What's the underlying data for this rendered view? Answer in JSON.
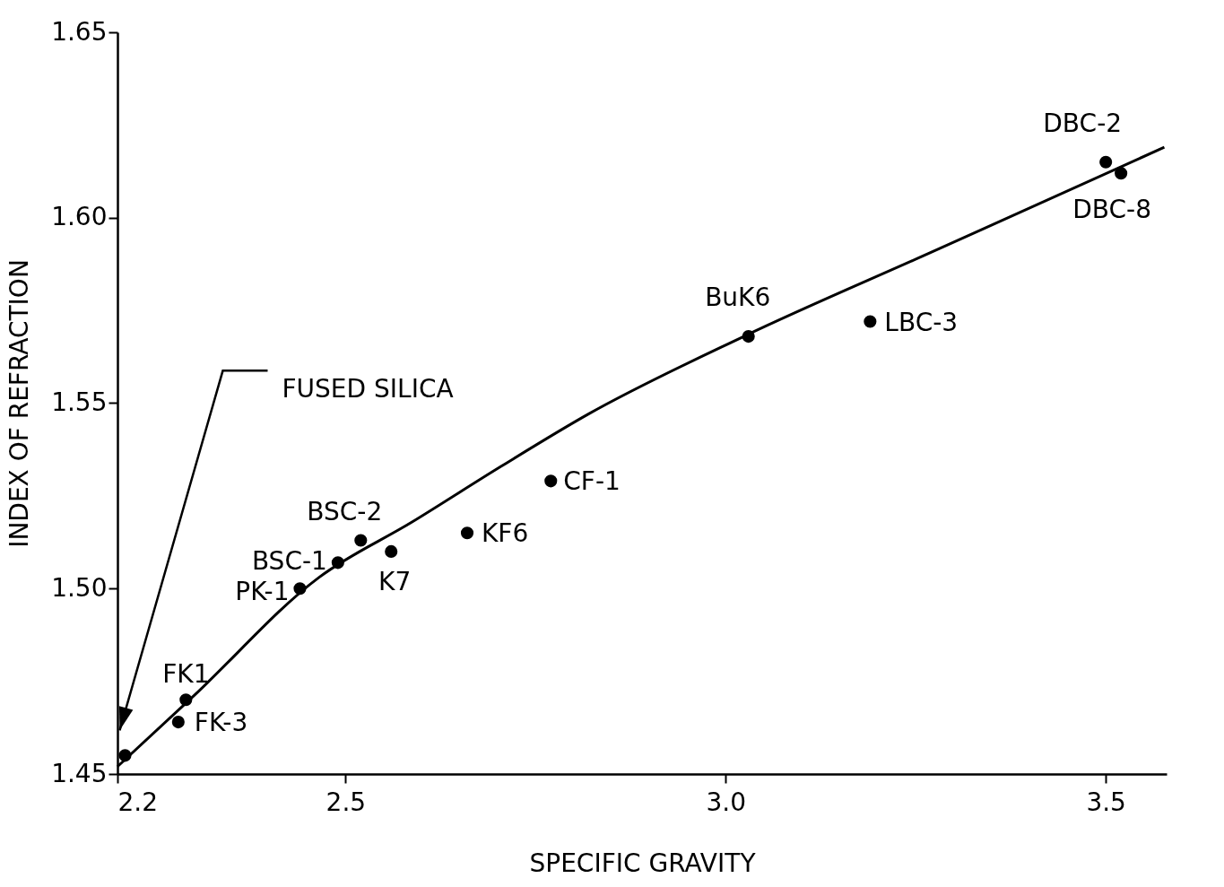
{
  "chart_data": {
    "type": "scatter",
    "xlabel": "SPECIFIC GRAVITY",
    "ylabel": "INDEX OF REFRACTION",
    "xlim": [
      2.2,
      3.58
    ],
    "xticks": [
      2.2,
      2.5,
      {
        "value": 3,
        "label": "3.0"
      },
      3.5
    ],
    "ylim": [
      1.45,
      1.65
    ],
    "yticks": [
      1.45,
      {
        "value": 1.5,
        "label": "1.50"
      },
      1.55,
      {
        "value": 1.6,
        "label": "1.60"
      },
      1.65
    ],
    "grid": false,
    "series": [
      {
        "marker": "circle",
        "color": "#000000",
        "x": [
          2.21,
          2.29,
          2.28,
          2.44,
          2.49,
          2.52,
          2.56,
          2.66,
          2.77,
          3.03,
          3.19,
          3.5,
          3.52
        ],
        "values": [
          1.455,
          1.47,
          1.464,
          1.5,
          1.507,
          1.513,
          1.51,
          1.515,
          1.529,
          1.568,
          1.572,
          1.615,
          1.612
        ]
      },
      {
        "type": "line",
        "color": "#000000",
        "line_style": "solid",
        "x": [
          2.2,
          2.3,
          2.465,
          2.588,
          2.705,
          2.819,
          3.024,
          3.274,
          3.577
        ],
        "values": [
          1.452,
          1.471,
          1.503,
          1.518,
          1.533,
          1.547,
          1.568,
          1.591,
          1.619
        ]
      }
    ],
    "annotations": [
      "FUSED SILICA",
      {
        "text": "FK1",
        "x": 2.29,
        "y": 1.47
      },
      {
        "text": "FK-3",
        "x": 2.28,
        "y": 1.464
      },
      {
        "text": "PK-1",
        "x": 2.44,
        "y": 1.5
      },
      {
        "text": "BSC-1",
        "x": 2.49,
        "y": 1.507
      },
      {
        "text": "BSC-2",
        "x": 2.52,
        "y": 1.513
      },
      {
        "text": "K7",
        "x": 2.56,
        "y": 1.51
      },
      {
        "text": "KF6",
        "x": 2.66,
        "y": 1.515
      },
      {
        "text": "CF-1",
        "x": 2.77,
        "y": 1.529
      },
      {
        "text": "BuK6",
        "x": 3.03,
        "y": 1.568
      },
      {
        "text": "LBC-3",
        "x": 3.19,
        "y": 1.572
      },
      {
        "text": "DBC-2",
        "x": 3.5,
        "y": 1.615
      },
      {
        "text": "DBC-8",
        "x": 3.52,
        "y": 1.612
      }
    ]
  }
}
